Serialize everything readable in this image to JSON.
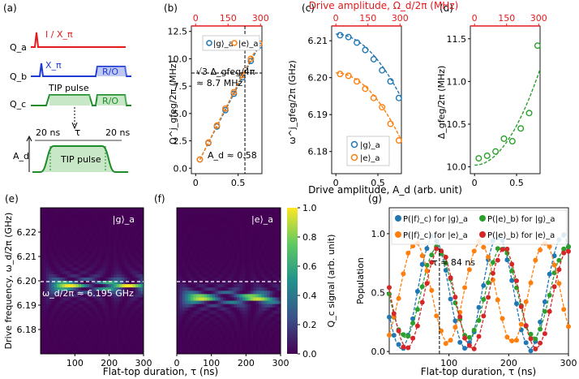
{
  "figure": {
    "panel_labels": [
      "(a)",
      "(b)",
      "(c)",
      "(d)",
      "(e)",
      "(f)",
      "(g)"
    ],
    "top_axis_label": "Drive amplitude, Ω_d/2π (MHz)",
    "top_ticks": [
      "0",
      "150",
      "300"
    ],
    "bottom_axis_label_bcd": "Drive amplitude, A_d (arb. unit)",
    "bottom_ticks_bcd": [
      "0",
      "0.5"
    ],
    "colors": {
      "blue": "#1f77b4",
      "orange": "#ff7f0e",
      "green": "#2ca02c",
      "red": "#d62728",
      "drive_red": "#e41a1c",
      "drive_blue": "#1f3bd6",
      "drive_green": "#1e8c2a"
    }
  },
  "panel_a": {
    "qubits": [
      "Q_a",
      "Q_b",
      "Q_c"
    ],
    "qa_pulse": "I / X_π",
    "qb_pulse": "X_π",
    "ro_label": "R/O",
    "tip_pulse": "TIP pulse",
    "ramp1": "20 ns",
    "tau": "τ",
    "ramp2": "20 ns",
    "amp_label": "A_d"
  },
  "chart_data": [
    {
      "id": "b",
      "type": "scatter",
      "ylabel": "Ω^j_gfeg/2π (MHz)",
      "xlabel": "Drive amplitude, A_d (arb. unit)",
      "xlim": [
        -0.05,
        0.78
      ],
      "ylim": [
        -0.5,
        13
      ],
      "yticks": [
        "0.0",
        "2.5",
        "5.0",
        "7.5",
        "10.0",
        "12.5"
      ],
      "legend": [
        "|g⟩_a",
        "|e⟩_a"
      ],
      "annotations": [
        "√3 Δ_gfeg/4π",
        "≈ 8.7 MHz",
        "A_d ≈ 0.58"
      ],
      "series": [
        {
          "name": "|g⟩_a",
          "x": [
            0.05,
            0.15,
            0.25,
            0.35,
            0.45,
            0.55,
            0.65,
            0.75
          ],
          "y": [
            0.8,
            2.3,
            3.8,
            5.3,
            6.8,
            8.3,
            9.8,
            11.2
          ]
        },
        {
          "name": "|e⟩_a",
          "x": [
            0.05,
            0.15,
            0.25,
            0.35,
            0.45,
            0.55,
            0.65,
            0.75
          ],
          "y": [
            0.8,
            2.35,
            3.9,
            5.45,
            6.95,
            8.5,
            10.0,
            11.4
          ]
        }
      ]
    },
    {
      "id": "c",
      "type": "scatter",
      "ylabel": "ω^j_gfeg/2π (GHz)",
      "xlim": [
        -0.05,
        0.78
      ],
      "ylim": [
        6.174,
        6.214
      ],
      "yticks": [
        "6.18",
        "6.19",
        "6.20",
        "6.21"
      ],
      "legend": [
        "|g⟩_a",
        "|e⟩_a"
      ],
      "series": [
        {
          "name": "|g⟩_a",
          "x": [
            0.05,
            0.15,
            0.25,
            0.35,
            0.45,
            0.55,
            0.65,
            0.75
          ],
          "y": [
            6.2115,
            6.211,
            6.2095,
            6.2075,
            6.205,
            6.202,
            6.199,
            6.1945
          ]
        },
        {
          "name": "|e⟩_a",
          "x": [
            0.05,
            0.15,
            0.25,
            0.35,
            0.45,
            0.55,
            0.65,
            0.75
          ],
          "y": [
            6.201,
            6.2005,
            6.199,
            6.197,
            6.1945,
            6.192,
            6.1875,
            6.183
          ]
        }
      ]
    },
    {
      "id": "d",
      "type": "scatter",
      "ylabel": "Δ_gfeg/2π (MHz)",
      "xlim": [
        -0.05,
        0.78
      ],
      "ylim": [
        9.92,
        11.65
      ],
      "yticks": [
        "10.0",
        "10.5",
        "11.0",
        "11.5"
      ],
      "series": [
        {
          "name": "data",
          "x": [
            0.05,
            0.15,
            0.25,
            0.35,
            0.45,
            0.55,
            0.65,
            0.75
          ],
          "y": [
            10.1,
            10.13,
            10.18,
            10.33,
            10.3,
            10.45,
            10.63,
            11.42
          ]
        }
      ]
    },
    {
      "id": "e",
      "type": "heatmap",
      "label": "|g⟩_a",
      "ylabel": "Drive frequency, ω_d/2π (GHz)",
      "yticks": [
        "6.18",
        "6.19",
        "6.20",
        "6.21",
        "6.22"
      ],
      "xticks": [
        "100",
        "200",
        "300"
      ],
      "annotation": "ω_d/2π ≈ 6.195 GHz",
      "xlim": [
        0,
        300
      ],
      "ylim": [
        6.17,
        6.23
      ]
    },
    {
      "id": "f",
      "type": "heatmap",
      "label": "|e⟩_a",
      "xticks": [
        "0",
        "100",
        "200",
        "300"
      ],
      "xlim": [
        0,
        300
      ],
      "ylim": [
        6.17,
        6.23
      ],
      "colorbar_label": "Q_c signal (arb. unit)",
      "colorbar_ticks": [
        "0.0",
        "0.2",
        "0.4",
        "0.6",
        "0.8",
        "1.0"
      ]
    },
    {
      "id": "g",
      "type": "line",
      "ylabel": "Population",
      "xlabel": "Flat-top duration, τ (ns)",
      "xticks": [
        "100",
        "200",
        "300"
      ],
      "yticks": [
        "0.0",
        "0.5",
        "1.0"
      ],
      "xlim": [
        0,
        300
      ],
      "ylim": [
        -0.02,
        1.22
      ],
      "annotation": "τ ≈ 84 ns",
      "legend": [
        "P(|f⟩_c) for |g⟩_a",
        "P(|e⟩_b) for |g⟩_a",
        "P(|f⟩_c) for |e⟩_a",
        "P(|e⟩_b) for |e⟩_a"
      ]
    }
  ],
  "bottom_xlabel": "Flat-top duration, τ (ns)",
  "bottom_xlabel_g": "Flat-top duration, τ (ns)"
}
